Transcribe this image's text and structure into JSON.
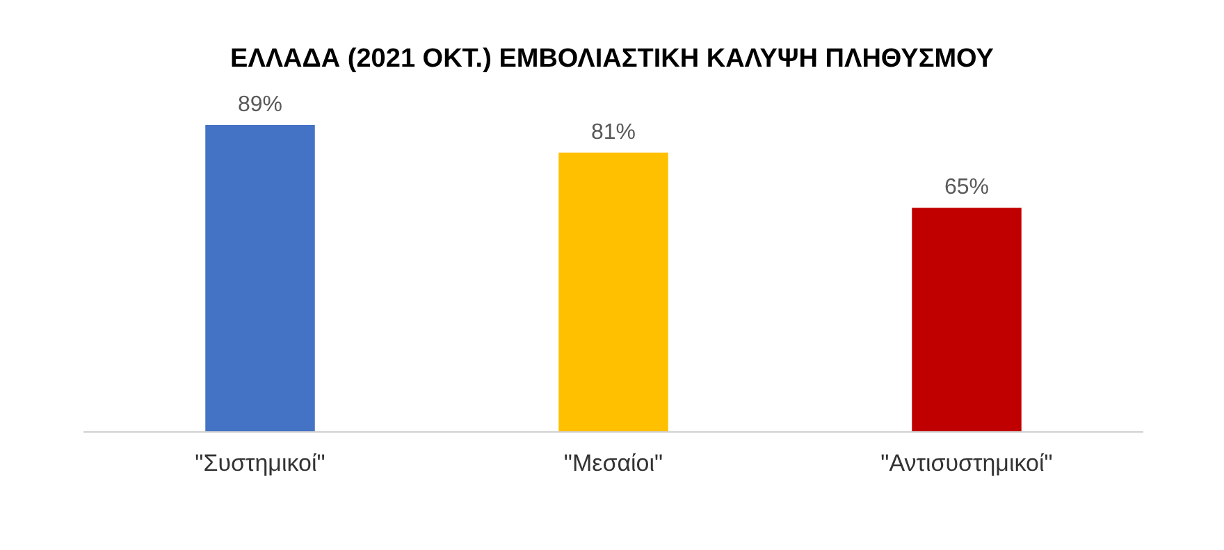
{
  "chart_data": {
    "type": "bar",
    "title": "ΕΛΛΑΔΑ (2021 ΟΚΤ.) ΕΜΒΟΛΙΑΣΤΙΚΗ ΚΑΛΥΨΗ ΠΛΗΘΥΣΜΟΥ",
    "categories": [
      "\"Συστημικοί\"",
      "\"Μεσαίοι\"",
      "\"Αντισυστημικοί\""
    ],
    "values": [
      89,
      81,
      65
    ],
    "colors": [
      "#4472c4",
      "#ffc000",
      "#c00000"
    ],
    "value_labels": [
      "89%",
      "81%",
      "65%"
    ]
  }
}
